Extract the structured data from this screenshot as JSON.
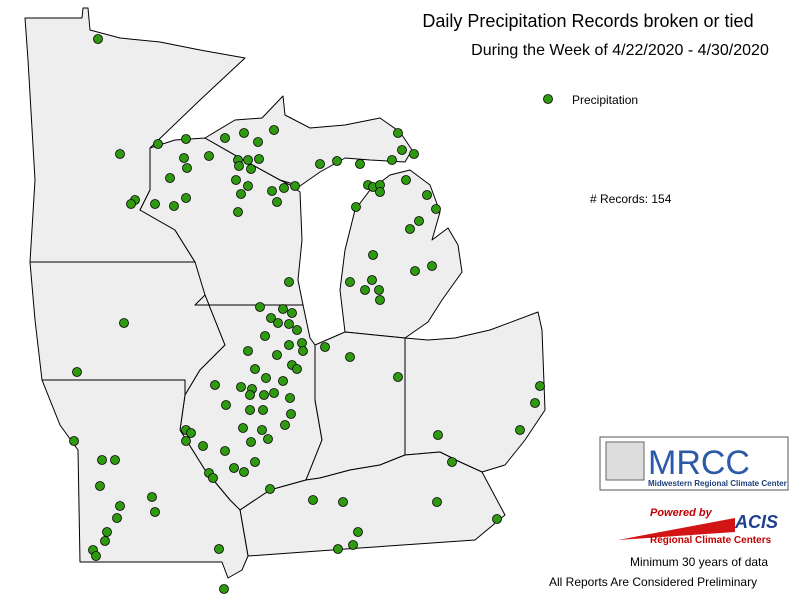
{
  "header": {
    "title": "Daily Precipitation Records broken or tied",
    "subtitle": "During the Week of 4/22/2020 - 4/30/2020"
  },
  "legend": {
    "label": "Precipitation"
  },
  "records": {
    "label": "# Records:",
    "count": 154
  },
  "logo": {
    "name": "MRCC",
    "full_name": "Midwestern Regional Climate Center"
  },
  "acis": {
    "powered_by": "Powered by",
    "name": "ACIS",
    "subtitle": "Regional Climate Centers"
  },
  "notes": [
    "Minimum 30 years of data",
    "All Reports Are Considered Preliminary"
  ]
}
